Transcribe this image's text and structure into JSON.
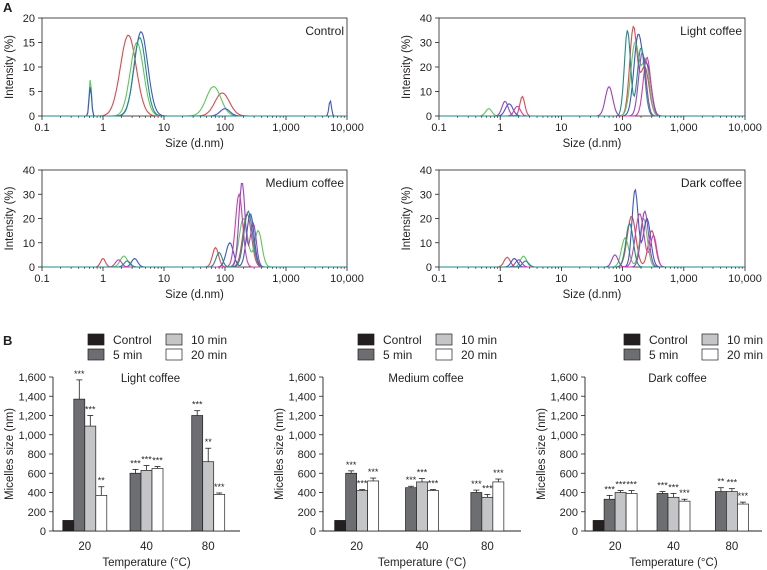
{
  "figure": {
    "panel_a_label": "A",
    "panel_b_label": "B"
  },
  "colors": {
    "axis": "#231f20",
    "red": "#e0474c",
    "green": "#5cc85c",
    "blue": "#3a56c8",
    "purple": "#9b3fc4",
    "magenta": "#d13cb0",
    "teal": "#1f8a8a",
    "control_bar": "#231f20",
    "min5_bar": "#6d6e71",
    "min10_bar": "#c4c5c7",
    "min20_bar": "#ffffff"
  },
  "chart_data": [
    {
      "id": "dls_control",
      "type": "line",
      "title": "Control",
      "xlabel": "Size (d.nm)",
      "ylabel": "Intensity (%)",
      "xscale": "log",
      "xlim": [
        0.1,
        10000
      ],
      "ylim": [
        0,
        20
      ],
      "xticks": [
        "0.1",
        "1",
        "10",
        "100",
        "1,000",
        "10,000"
      ],
      "yticks": [
        "0",
        "5",
        "10",
        "15",
        "20"
      ],
      "series": [
        {
          "name": "run 1",
          "color": "red",
          "peaks": [
            [
              2.6,
              16.5,
              0.13
            ],
            [
              90,
              4.7,
              0.12
            ]
          ]
        },
        {
          "name": "run 2",
          "color": "green",
          "peaks": [
            [
              0.62,
              7.5,
              0.02
            ],
            [
              3.6,
              15.0,
              0.11
            ],
            [
              65,
              6.0,
              0.12
            ]
          ]
        },
        {
          "name": "run 3",
          "color": "blue",
          "peaks": [
            [
              0.62,
              6.0,
              0.02
            ],
            [
              4.2,
              17.2,
              0.11
            ],
            [
              100,
              1.5,
              0.08
            ],
            [
              5300,
              3.2,
              0.02
            ]
          ]
        },
        {
          "name": "run 4",
          "color": "teal",
          "peaks": [
            [
              4.0,
              16.0,
              0.1
            ]
          ]
        }
      ]
    },
    {
      "id": "dls_light",
      "type": "line",
      "title": "Light coffee",
      "xlabel": "Size (d.nm)",
      "ylabel": "Intensity (%)",
      "xscale": "log",
      "xlim": [
        0.1,
        10000
      ],
      "ylim": [
        0,
        40
      ],
      "xticks": [
        "0.1",
        "1",
        "10",
        "100",
        "1,000",
        "10,000"
      ],
      "yticks": [
        "0",
        "10",
        "20",
        "30",
        "40"
      ],
      "series": [
        {
          "name": "run 1",
          "color": "red",
          "peaks": [
            [
              2.3,
              8.0,
              0.04
            ],
            [
              150,
              36.0,
              0.06
            ],
            [
              230,
              20.0,
              0.07
            ]
          ]
        },
        {
          "name": "run 2",
          "color": "green",
          "peaks": [
            [
              0.65,
              3.0,
              0.05
            ],
            [
              160,
              30.0,
              0.07
            ],
            [
              240,
              22.0,
              0.06
            ]
          ]
        },
        {
          "name": "run 3",
          "color": "blue",
          "peaks": [
            [
              1.4,
              5.0,
              0.06
            ],
            [
              180,
              33.0,
              0.07
            ],
            [
              260,
              18.0,
              0.06
            ]
          ]
        },
        {
          "name": "run 4",
          "color": "purple",
          "peaks": [
            [
              1.2,
              6.0,
              0.05
            ],
            [
              60,
              12.0,
              0.06
            ],
            [
              210,
              26.0,
              0.06
            ]
          ]
        },
        {
          "name": "run 5",
          "color": "magenta",
          "peaks": [
            [
              1.9,
              4.0,
              0.05
            ],
            [
              250,
              24.0,
              0.06
            ]
          ]
        },
        {
          "name": "run 6",
          "color": "teal",
          "peaks": [
            [
              120,
              35.0,
              0.05
            ],
            [
              200,
              28.0,
              0.06
            ]
          ]
        }
      ]
    },
    {
      "id": "dls_medium",
      "type": "line",
      "title": "Medium coffee",
      "xlabel": "Size (d.nm)",
      "ylabel": "Intensity (%)",
      "xscale": "log",
      "xlim": [
        0.1,
        10000
      ],
      "ylim": [
        0,
        40
      ],
      "xticks": [
        "0.1",
        "1",
        "10",
        "100",
        "1,000",
        "10,000"
      ],
      "yticks": [
        "0",
        "10",
        "20",
        "30",
        "40"
      ],
      "series": [
        {
          "name": "run 1",
          "color": "red",
          "peaks": [
            [
              1.0,
              3.5,
              0.04
            ],
            [
              70,
              8.0,
              0.05
            ],
            [
              230,
              22.0,
              0.07
            ]
          ]
        },
        {
          "name": "run 2",
          "color": "green",
          "peaks": [
            [
              2.2,
              4.5,
              0.06
            ],
            [
              200,
              20.0,
              0.07
            ],
            [
              350,
              15.0,
              0.06
            ]
          ]
        },
        {
          "name": "run 3",
          "color": "blue",
          "peaks": [
            [
              3.3,
              3.5,
              0.05
            ],
            [
              120,
              10.0,
              0.06
            ],
            [
              260,
              22.0,
              0.06
            ]
          ]
        },
        {
          "name": "run 4",
          "color": "purple",
          "peaks": [
            [
              190,
              35.0,
              0.05
            ],
            [
              290,
              18.0,
              0.05
            ]
          ]
        },
        {
          "name": "run 5",
          "color": "magenta",
          "peaks": [
            [
              1.8,
              3.0,
              0.05
            ],
            [
              170,
              30.0,
              0.06
            ]
          ]
        },
        {
          "name": "run 6",
          "color": "teal",
          "peaks": [
            [
              2.5,
              2.5,
              0.05
            ],
            [
              80,
              6.0,
              0.05
            ],
            [
              240,
              23.0,
              0.07
            ]
          ]
        }
      ]
    },
    {
      "id": "dls_dark",
      "type": "line",
      "title": "Dark coffee",
      "xlabel": "Size (d.nm)",
      "ylabel": "Intensity (%)",
      "xscale": "log",
      "xlim": [
        0.1,
        10000
      ],
      "ylim": [
        0,
        40
      ],
      "xticks": [
        "0.1",
        "1",
        "10",
        "100",
        "1,000",
        "10,000"
      ],
      "yticks": [
        "0",
        "10",
        "20",
        "30",
        "40"
      ],
      "series": [
        {
          "name": "run 1",
          "color": "red",
          "peaks": [
            [
              1.3,
              4.0,
              0.05
            ],
            [
              140,
              21.0,
              0.07
            ],
            [
              300,
              15.0,
              0.06
            ]
          ]
        },
        {
          "name": "run 2",
          "color": "green",
          "peaks": [
            [
              2.4,
              4.5,
              0.05
            ],
            [
              110,
              12.0,
              0.06
            ],
            [
              220,
              20.0,
              0.06
            ]
          ]
        },
        {
          "name": "run 3",
          "color": "blue",
          "peaks": [
            [
              1.7,
              3.5,
              0.05
            ],
            [
              160,
              32.0,
              0.05
            ],
            [
              250,
              20.0,
              0.06
            ]
          ]
        },
        {
          "name": "run 4",
          "color": "purple",
          "peaks": [
            [
              2.0,
              3.0,
              0.05
            ],
            [
              75,
              5.0,
              0.05
            ],
            [
              230,
              23.0,
              0.06
            ]
          ]
        },
        {
          "name": "run 5",
          "color": "magenta",
          "peaks": [
            [
              190,
              22.0,
              0.07
            ],
            [
              320,
              13.0,
              0.05
            ]
          ]
        },
        {
          "name": "run 6",
          "color": "teal",
          "peaks": [
            [
              2.6,
              2.5,
              0.05
            ],
            [
              130,
              18.0,
              0.06
            ]
          ]
        }
      ]
    },
    {
      "id": "bar_light",
      "type": "bar",
      "title": "Light coffee",
      "xlabel": "Temperature (°C)",
      "ylabel": "Micelles size (nm)",
      "ylim": [
        0,
        1600
      ],
      "yticks": [
        "0",
        "200",
        "400",
        "600",
        "800",
        "1,000",
        "1,200",
        "1,400",
        "1,600"
      ],
      "legend": {
        "control": "Control",
        "min5": "5 min",
        "min10": "10 min",
        "min20": "20 min"
      },
      "categories": [
        "20",
        "40",
        "80"
      ],
      "series": [
        {
          "name": "Control",
          "color": "control_bar",
          "values": [
            110,
            null,
            null
          ],
          "errors": [
            0,
            null,
            null
          ],
          "sig": [
            "",
            null,
            null
          ]
        },
        {
          "name": "5 min",
          "color": "min5_bar",
          "values": [
            1370,
            600,
            1200
          ],
          "errors": [
            200,
            40,
            50
          ],
          "sig": [
            "***",
            "***",
            "***"
          ]
        },
        {
          "name": "10 min",
          "color": "min10_bar",
          "values": [
            1090,
            630,
            720
          ],
          "errors": [
            110,
            50,
            140
          ],
          "sig": [
            "***",
            "***",
            "**"
          ]
        },
        {
          "name": "20 min",
          "color": "min20_bar",
          "values": [
            370,
            650,
            380
          ],
          "errors": [
            90,
            20,
            15
          ],
          "sig": [
            "**",
            "***",
            "***"
          ]
        }
      ]
    },
    {
      "id": "bar_medium",
      "type": "bar",
      "title": "Medium coffee",
      "xlabel": "Temperature (°C)",
      "ylabel": "Micelles size (nm)",
      "ylim": [
        0,
        1600
      ],
      "yticks": [
        "0",
        "200",
        "400",
        "600",
        "800",
        "1,000",
        "1,200",
        "1,400",
        "1,600"
      ],
      "legend": {
        "control": "Control",
        "min5": "5 min",
        "min10": "10 min",
        "min20": "20 min"
      },
      "categories": [
        "20",
        "40",
        "80"
      ],
      "series": [
        {
          "name": "Control",
          "color": "control_bar",
          "values": [
            110,
            null,
            null
          ],
          "errors": [
            0,
            null,
            null
          ],
          "sig": [
            "",
            null,
            null
          ]
        },
        {
          "name": "5 min",
          "color": "min5_bar",
          "values": [
            600,
            450,
            400
          ],
          "errors": [
            25,
            15,
            25
          ],
          "sig": [
            "***",
            "***",
            "***"
          ]
        },
        {
          "name": "10 min",
          "color": "min10_bar",
          "values": [
            420,
            510,
            350
          ],
          "errors": [
            10,
            35,
            30
          ],
          "sig": [
            "***",
            "***",
            "***"
          ]
        },
        {
          "name": "20 min",
          "color": "min20_bar",
          "values": [
            520,
            420,
            510
          ],
          "errors": [
            30,
            10,
            30
          ],
          "sig": [
            "***",
            "***",
            "***"
          ]
        }
      ]
    },
    {
      "id": "bar_dark",
      "type": "bar",
      "title": "Dark coffee",
      "xlabel": "Temperature (°C)",
      "ylabel": "Micelles size (nm)",
      "ylim": [
        0,
        1600
      ],
      "yticks": [
        "0",
        "200",
        "400",
        "600",
        "800",
        "1,000",
        "1,200",
        "1,400",
        "1,600"
      ],
      "legend": {
        "control": "Control",
        "min5": "5 min",
        "min10": "10 min",
        "min20": "20 min"
      },
      "categories": [
        "20",
        "40",
        "80"
      ],
      "series": [
        {
          "name": "Control",
          "color": "control_bar",
          "values": [
            110,
            null,
            null
          ],
          "errors": [
            0,
            null,
            null
          ],
          "sig": [
            "",
            null,
            null
          ]
        },
        {
          "name": "5 min",
          "color": "min5_bar",
          "values": [
            330,
            390,
            410
          ],
          "errors": [
            40,
            20,
            40
          ],
          "sig": [
            "***",
            "***",
            "**"
          ]
        },
        {
          "name": "10 min",
          "color": "min10_bar",
          "values": [
            400,
            350,
            410
          ],
          "errors": [
            20,
            40,
            30
          ],
          "sig": [
            "***",
            "***",
            "***"
          ]
        },
        {
          "name": "20 min",
          "color": "min20_bar",
          "values": [
            390,
            310,
            280
          ],
          "errors": [
            30,
            20,
            20
          ],
          "sig": [
            "***",
            "***",
            "***"
          ]
        }
      ]
    }
  ]
}
